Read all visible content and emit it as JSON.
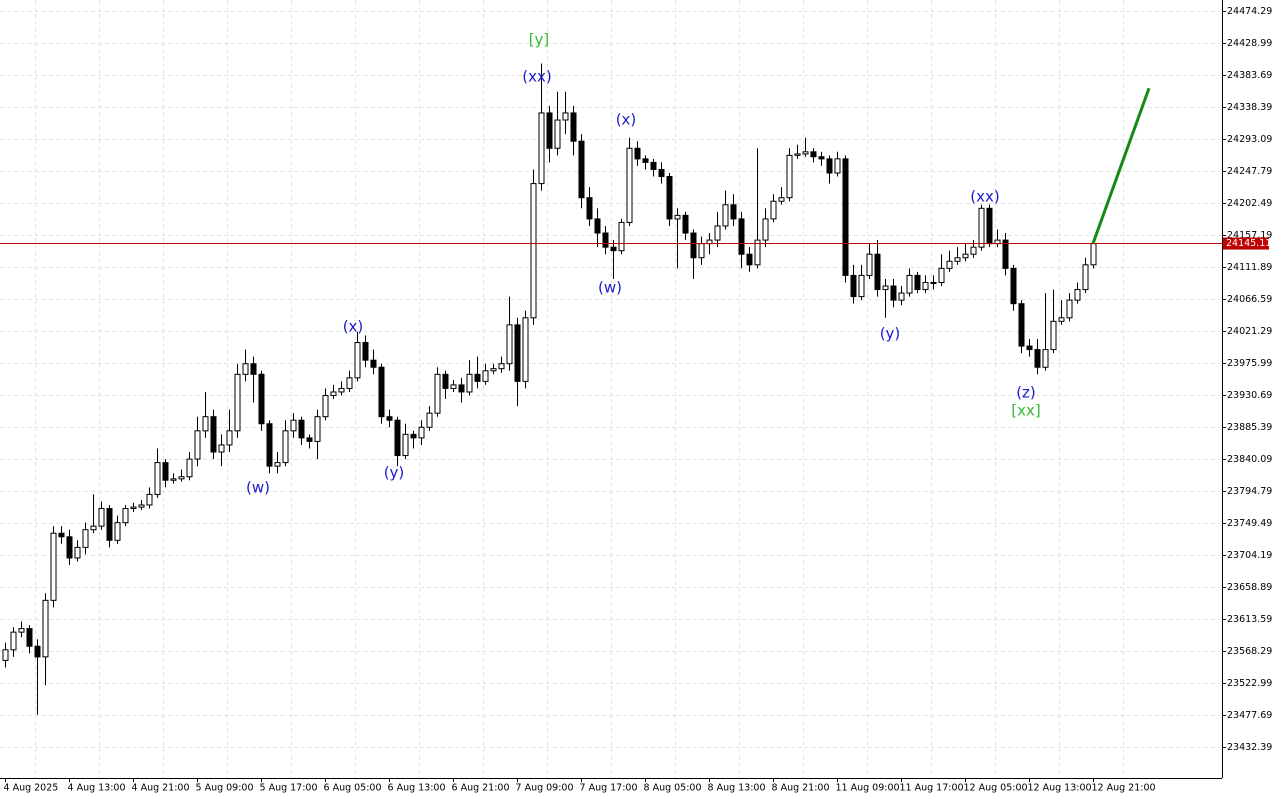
{
  "chart_data": {
    "type": "candlestick",
    "categories": [
      "4 Aug 2025",
      null,
      null,
      null,
      null,
      null,
      null,
      null,
      "4 Aug 13:00",
      null,
      null,
      null,
      null,
      null,
      null,
      null,
      "4 Aug 21:00",
      null,
      null,
      null,
      null,
      null,
      null,
      null,
      "5 Aug 09:00",
      null,
      null,
      null,
      null,
      null,
      null,
      null,
      "5 Aug 17:00",
      null,
      null,
      null,
      null,
      null,
      null,
      null,
      "6 Aug 05:00",
      null,
      null,
      null,
      null,
      null,
      null,
      null,
      "6 Aug 13:00",
      null,
      null,
      null,
      null,
      null,
      null,
      null,
      "6 Aug 21:00",
      null,
      null,
      null,
      null,
      null,
      null,
      null,
      "7 Aug 09:00",
      null,
      null,
      null,
      null,
      null,
      null,
      null,
      "7 Aug 17:00",
      null,
      null,
      null,
      null,
      null,
      null,
      null,
      "8 Aug 05:00",
      null,
      null,
      null,
      null,
      null,
      null,
      null,
      "8 Aug 13:00",
      null,
      null,
      null,
      null,
      null,
      null,
      null,
      "8 Aug 21:00",
      null,
      null,
      null,
      null,
      null,
      null,
      null,
      "11 Aug 09:00",
      null,
      null,
      null,
      null,
      null,
      null,
      null,
      "11 Aug 17:00",
      null,
      null,
      null,
      null,
      null,
      null,
      null,
      "12 Aug 05:00",
      null,
      null,
      null,
      null,
      null,
      null,
      null,
      "12 Aug 13:00",
      null,
      null,
      null,
      null,
      null,
      null,
      null,
      "12 Aug 21:00"
    ],
    "open": [
      23555,
      23570,
      23595,
      23600,
      23575,
      23560,
      23640,
      23735,
      23730,
      23700,
      23715,
      23740,
      23745,
      23770,
      23725,
      23750,
      23770,
      23772,
      23775,
      23790,
      23835,
      23810,
      23812,
      23815,
      23840,
      23880,
      23900,
      23850,
      23860,
      23880,
      23960,
      23975,
      23960,
      23890,
      23830,
      23835,
      23880,
      23895,
      23870,
      23865,
      23900,
      23930,
      23935,
      23940,
      23955,
      24005,
      23980,
      23970,
      23900,
      23895,
      23845,
      23875,
      23870,
      23885,
      23905,
      23960,
      23940,
      23945,
      23935,
      23960,
      23950,
      23965,
      23968,
      23975,
      24030,
      23950,
      24040,
      24230,
      24330,
      24280,
      24320,
      24330,
      24290,
      24210,
      24180,
      24160,
      24140,
      24135,
      24175,
      24280,
      24265,
      24260,
      24250,
      24240,
      24180,
      24185,
      24160,
      24125,
      24145,
      24150,
      24170,
      24200,
      24180,
      24130,
      24115,
      24150,
      24180,
      24205,
      24210,
      24270,
      24272,
      24275,
      24268,
      24265,
      24245,
      24265,
      24100,
      24070,
      24100,
      24130,
      24080,
      24085,
      24065,
      24075,
      24100,
      24080,
      24090,
      24090,
      24110,
      24120,
      24125,
      24130,
      24140,
      24195,
      24145,
      24150,
      24110,
      24060,
      24000,
      23995,
      23970,
      23995,
      24035,
      24040,
      24065,
      24080,
      24115
    ],
    "high": [
      23580,
      23602,
      23610,
      23605,
      23585,
      23650,
      23745,
      23745,
      23740,
      23725,
      23750,
      23790,
      23780,
      23775,
      23760,
      23775,
      23778,
      23782,
      23800,
      23855,
      23840,
      23820,
      23825,
      23850,
      23900,
      23935,
      23910,
      23875,
      23910,
      23975,
      23995,
      23985,
      23965,
      23895,
      23850,
      23895,
      23905,
      23900,
      23875,
      23910,
      23940,
      23945,
      23950,
      23965,
      24020,
      24015,
      23995,
      23975,
      23910,
      23900,
      23890,
      23880,
      23895,
      23915,
      23970,
      23965,
      23952,
      23955,
      23980,
      23985,
      23975,
      23975,
      23985,
      24070,
      24040,
      24050,
      24250,
      24400,
      24340,
      24360,
      24360,
      24340,
      24300,
      24225,
      24195,
      24170,
      24150,
      24180,
      24295,
      24290,
      24270,
      24265,
      24260,
      24245,
      24195,
      24190,
      24165,
      24155,
      24160,
      24190,
      24220,
      24215,
      24190,
      24140,
      24280,
      24195,
      24215,
      24225,
      24280,
      24285,
      24295,
      24280,
      24275,
      24270,
      24275,
      24270,
      24115,
      24115,
      24145,
      24150,
      24095,
      24095,
      24085,
      24110,
      24105,
      24100,
      24100,
      24130,
      24135,
      24140,
      24145,
      24150,
      24200,
      24200,
      24165,
      24160,
      24115,
      24065,
      24010,
      24010,
      24075,
      24080,
      24065,
      24075,
      24090,
      24125,
      24150
    ],
    "low": [
      23545,
      23560,
      23588,
      23565,
      23478,
      23520,
      23630,
      23720,
      23690,
      23695,
      23705,
      23735,
      23740,
      23715,
      23720,
      23745,
      23765,
      23768,
      23770,
      23785,
      23800,
      23805,
      23808,
      23810,
      23830,
      23870,
      23840,
      23830,
      23850,
      23870,
      23950,
      23920,
      23880,
      23820,
      23820,
      23830,
      23870,
      23860,
      23855,
      23840,
      23895,
      23925,
      23930,
      23935,
      23950,
      23970,
      23960,
      23890,
      23885,
      23830,
      23840,
      23855,
      23860,
      23880,
      23900,
      23925,
      23935,
      23920,
      23930,
      23940,
      23945,
      23960,
      23962,
      23965,
      23915,
      23940,
      24030,
      24220,
      24260,
      24270,
      24300,
      24270,
      24195,
      24170,
      24140,
      24130,
      24095,
      24130,
      24170,
      24255,
      24250,
      24240,
      24230,
      24170,
      24110,
      24150,
      24095,
      24115,
      24130,
      24140,
      24165,
      24170,
      24110,
      24105,
      24110,
      24140,
      24175,
      24200,
      24205,
      24265,
      24268,
      24260,
      24255,
      24230,
      24240,
      24090,
      24060,
      24065,
      24095,
      24070,
      24040,
      24055,
      24058,
      24070,
      24075,
      24075,
      24080,
      24085,
      24105,
      24115,
      24120,
      24125,
      24135,
      24140,
      24140,
      24100,
      24050,
      23990,
      23985,
      23960,
      23965,
      23990,
      24030,
      24035,
      24060,
      24075,
      24110
    ],
    "close": [
      23570,
      23595,
      23600,
      23575,
      23560,
      23640,
      23735,
      23730,
      23700,
      23715,
      23740,
      23745,
      23770,
      23725,
      23750,
      23770,
      23772,
      23775,
      23790,
      23835,
      23810,
      23812,
      23815,
      23840,
      23880,
      23900,
      23850,
      23860,
      23880,
      23960,
      23975,
      23960,
      23890,
      23830,
      23835,
      23880,
      23895,
      23870,
      23865,
      23900,
      23930,
      23935,
      23940,
      23955,
      24005,
      23980,
      23970,
      23900,
      23895,
      23845,
      23875,
      23870,
      23885,
      23905,
      23960,
      23940,
      23945,
      23935,
      23960,
      23950,
      23965,
      23968,
      23975,
      24030,
      23950,
      24040,
      24230,
      24330,
      24280,
      24320,
      24330,
      24290,
      24210,
      24180,
      24160,
      24140,
      24135,
      24175,
      24280,
      24265,
      24260,
      24250,
      24240,
      24180,
      24185,
      24160,
      24125,
      24145,
      24150,
      24170,
      24200,
      24180,
      24130,
      24115,
      24150,
      24180,
      24205,
      24210,
      24270,
      24272,
      24275,
      24268,
      24265,
      24245,
      24265,
      24100,
      24070,
      24100,
      24130,
      24080,
      24085,
      24065,
      24075,
      24100,
      24080,
      24090,
      24090,
      24110,
      24120,
      24125,
      24130,
      24140,
      24195,
      24145,
      24150,
      24110,
      24060,
      24000,
      23995,
      23970,
      23995,
      24035,
      24040,
      24065,
      24080,
      24115,
      24145
    ],
    "ylim": [
      23388.5,
      24489.9
    ],
    "yticks": [
      24474.29,
      24428.99,
      24383.69,
      24338.39,
      24293.09,
      24247.79,
      24202.49,
      24157.19,
      24111.89,
      24066.59,
      24021.29,
      23975.99,
      23930.69,
      23885.39,
      23840.09,
      23794.79,
      23749.49,
      23704.19,
      23658.89,
      23613.59,
      23568.29,
      23522.99,
      23477.69,
      23432.39
    ],
    "grid": true,
    "price_line": {
      "value": 24145.11,
      "color": "#c00000"
    },
    "forecast": {
      "values": [
        24145.11,
        24365
      ],
      "color": "#138a13"
    },
    "annotations": [
      {
        "text": "[y]",
        "color": "#33bb33"
      },
      {
        "text": "(xx)",
        "color": "#1a1acc"
      },
      {
        "text": "(x)",
        "color": "#1a1acc"
      },
      {
        "text": "(w)",
        "color": "#1a1acc"
      },
      {
        "text": "(w)",
        "color": "#1a1acc"
      },
      {
        "text": "(x)",
        "color": "#1a1acc"
      },
      {
        "text": "(y)",
        "color": "#1a1acc"
      },
      {
        "text": "(y)",
        "color": "#1a1acc"
      },
      {
        "text": "(xx)",
        "color": "#1a1acc"
      },
      {
        "text": "(z)",
        "color": "#1a1acc"
      },
      {
        "text": "[xx]",
        "color": "#33bb33"
      }
    ]
  }
}
